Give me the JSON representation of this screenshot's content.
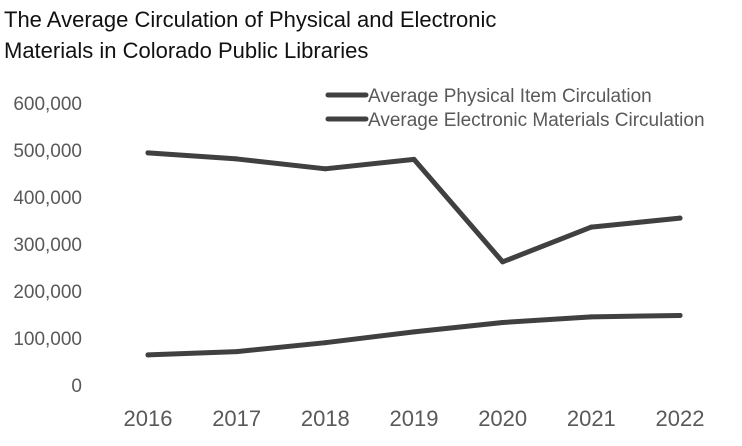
{
  "chart_data": {
    "type": "line",
    "title": "The Average Circulation of Physical and Electronic Materials in Colorado Public Libraries",
    "title_lines": [
      "The Average Circulation of Physical and Electronic",
      "Materials in Colorado Public Libraries"
    ],
    "categories": [
      "2016",
      "2017",
      "2018",
      "2019",
      "2020",
      "2021",
      "2022"
    ],
    "ylim": [
      0,
      600000
    ],
    "yticks": [
      0,
      100000,
      200000,
      300000,
      400000,
      500000,
      600000
    ],
    "ytick_labels": [
      "0",
      "100,000",
      "200,000",
      "300,000",
      "400,000",
      "500,000",
      "600,000"
    ],
    "grid": false,
    "legend_position": "top-right",
    "series": [
      {
        "name": "Average Physical Item Circulation",
        "color": "#404040",
        "values": [
          494000,
          481000,
          460000,
          480000,
          262000,
          336000,
          355000
        ]
      },
      {
        "name": "Average Electronic Materials Circulation",
        "color": "#404040",
        "values": [
          64000,
          71000,
          90000,
          113000,
          133000,
          145000,
          148000
        ]
      }
    ]
  }
}
